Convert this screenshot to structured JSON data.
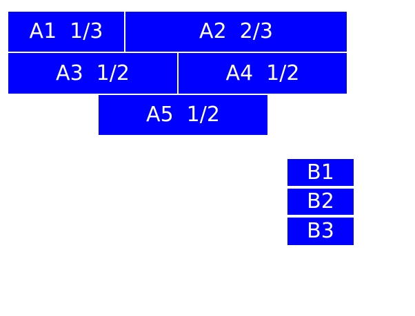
{
  "colors": {
    "background": "#ffffff",
    "box_fill": "#0000ff",
    "box_text": "#ffffff"
  },
  "boxes": {
    "a1": {
      "name": "A1",
      "share": "1/3"
    },
    "a2": {
      "name": "A2",
      "share": "2/3"
    },
    "a3": {
      "name": "A3",
      "share": "1/2"
    },
    "a4": {
      "name": "A4",
      "share": "1/2"
    },
    "a5": {
      "name": "A5",
      "share": "1/2"
    },
    "b1": {
      "name": "B1"
    },
    "b2": {
      "name": "B2"
    },
    "b3": {
      "name": "B3"
    }
  }
}
